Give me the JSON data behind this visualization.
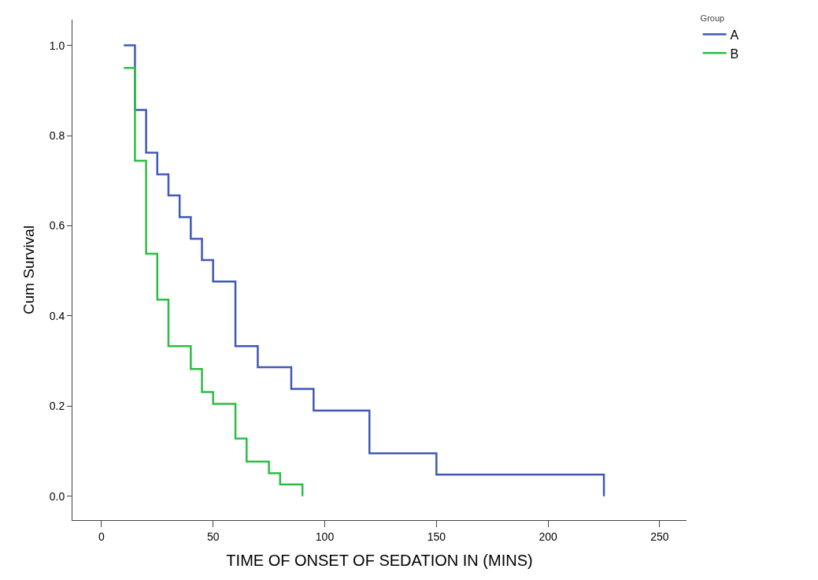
{
  "chart_data": {
    "type": "step",
    "xlabel": "TIME OF ONSET OF SEDATION IN (MINS)",
    "ylabel": "Cum Survival",
    "legend_title": "Group",
    "legend": "top right",
    "grid": false,
    "marker": "none",
    "line_style": "solid",
    "xlim": [
      -13,
      262
    ],
    "xticks": [
      0,
      50,
      100,
      150,
      200,
      250
    ],
    "ylim": [
      -0.053,
      1.057
    ],
    "yticks": [
      {
        "value": 0,
        "label": "0.0"
      },
      {
        "value": 0.2,
        "label": "0.2"
      },
      {
        "value": 0.4,
        "label": "0.4"
      },
      {
        "value": 0.6,
        "label": "0.6"
      },
      {
        "value": 0.8,
        "label": "0.8"
      },
      {
        "value": 1,
        "label": "1.0"
      }
    ],
    "series": [
      {
        "name": "A",
        "color": "#4059b5",
        "x": [
          10,
          15,
          20,
          25,
          30,
          35,
          40,
          45,
          50,
          60,
          70,
          85,
          95,
          120,
          150,
          225
        ],
        "values": [
          1.0,
          0.857,
          0.762,
          0.714,
          0.667,
          0.619,
          0.571,
          0.524,
          0.476,
          0.333,
          0.286,
          0.238,
          0.19,
          0.095,
          0.048,
          0.0
        ]
      },
      {
        "name": "B",
        "color": "#2ebd44",
        "x": [
          10,
          15,
          20,
          25,
          30,
          40,
          45,
          50,
          60,
          65,
          75,
          80,
          90
        ],
        "values": [
          0.95,
          0.744,
          0.538,
          0.436,
          0.333,
          0.282,
          0.231,
          0.205,
          0.128,
          0.077,
          0.051,
          0.026,
          0.0
        ]
      }
    ]
  }
}
